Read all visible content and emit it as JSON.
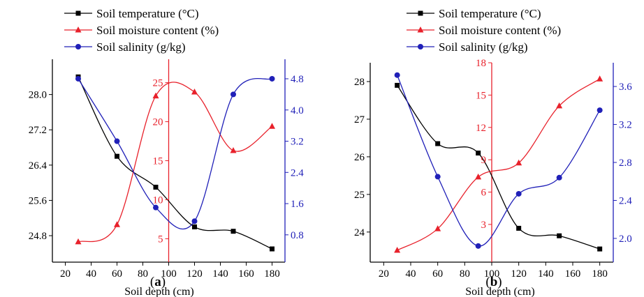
{
  "chart_data": [
    {
      "type": "line",
      "panel_label": "(a)",
      "panel_letter": "a",
      "xlabel": "Soil depth (cm)",
      "xlim": [
        10,
        190
      ],
      "xticks": [
        20,
        40,
        60,
        80,
        100,
        120,
        140,
        160,
        180
      ],
      "x": [
        30,
        60,
        90,
        120,
        150,
        180
      ],
      "legend": [
        "Soil temperature (°C)",
        "Soil moisture content (%)",
        "Soil salinity (g/kg)"
      ],
      "legend_position": "top",
      "colors": {
        "temperature": "#000000",
        "moisture": "#e8212b",
        "salinity": "#2020b8"
      },
      "series": [
        {
          "name": "Soil temperature (°C)",
          "axis": "left",
          "marker": "square",
          "values": [
            28.4,
            26.6,
            25.9,
            25.0,
            24.9,
            24.5
          ],
          "ylim": [
            24.2,
            28.8
          ],
          "yticks": [
            24.8,
            25.6,
            26.4,
            27.2,
            28.0
          ],
          "decimals": 1
        },
        {
          "name": "Soil moisture content (%)",
          "axis": "middle",
          "marker": "triangle",
          "values": [
            4.6,
            6.8,
            23.3,
            23.8,
            16.3,
            19.4
          ],
          "ylim": [
            2,
            28
          ],
          "yticks": [
            5,
            10,
            15,
            20,
            25
          ],
          "decimals": 0
        },
        {
          "name": "Soil salinity (g/kg)",
          "axis": "right",
          "marker": "circle",
          "values": [
            4.8,
            3.2,
            1.5,
            1.15,
            4.4,
            4.8
          ],
          "ylim": [
            0.1,
            5.3
          ],
          "yticks": [
            0.8,
            1.6,
            2.4,
            3.2,
            4.0,
            4.8
          ],
          "decimals": 1
        }
      ]
    },
    {
      "type": "line",
      "panel_label": "(b)",
      "panel_letter": "b",
      "xlabel": "Soil depth (cm)",
      "xlim": [
        10,
        190
      ],
      "xticks": [
        20,
        40,
        60,
        80,
        100,
        120,
        140,
        160,
        180
      ],
      "x": [
        30,
        60,
        90,
        120,
        150,
        180
      ],
      "legend": [
        "Soil temperature (°C)",
        "Soil moisture content (%)",
        "Soil salinity (g/kg)"
      ],
      "legend_position": "top",
      "colors": {
        "temperature": "#000000",
        "moisture": "#e8212b",
        "salinity": "#2020b8"
      },
      "series": [
        {
          "name": "Soil temperature (°C)",
          "axis": "left",
          "marker": "square",
          "values": [
            27.9,
            26.35,
            26.1,
            24.1,
            23.9,
            23.55
          ],
          "ylim": [
            23.2,
            28.5
          ],
          "yticks": [
            24,
            25,
            26,
            27,
            28
          ],
          "decimals": 0
        },
        {
          "name": "Soil moisture content (%)",
          "axis": "middle",
          "marker": "triangle",
          "values": [
            0.6,
            2.6,
            7.4,
            8.7,
            14.0,
            16.5
          ],
          "ylim": [
            -0.5,
            18
          ],
          "yticks": [
            3,
            6,
            9,
            12,
            15,
            18
          ],
          "decimals": 0
        },
        {
          "name": "Soil salinity (g/kg)",
          "axis": "right",
          "marker": "circle",
          "values": [
            3.72,
            2.65,
            1.92,
            2.47,
            2.64,
            3.35
          ],
          "ylim": [
            1.75,
            3.85
          ],
          "yticks": [
            2.0,
            2.4,
            2.8,
            3.2,
            3.6
          ],
          "decimals": 1
        }
      ]
    }
  ]
}
